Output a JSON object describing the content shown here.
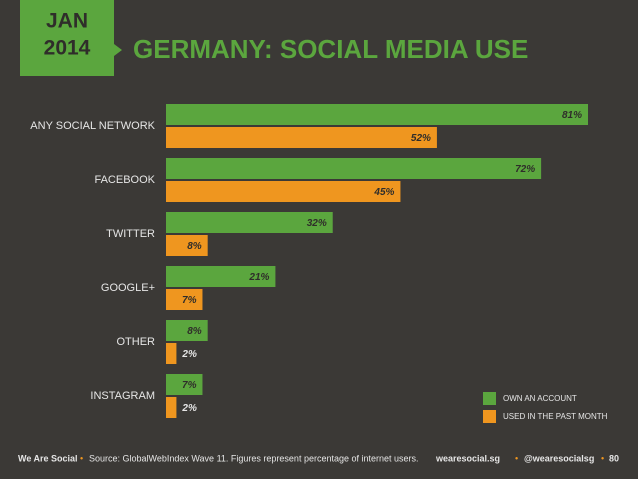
{
  "chart_data": {
    "type": "bar",
    "orientation": "horizontal",
    "badge": {
      "month": "JAN",
      "year": "2014"
    },
    "title": "GERMANY: SOCIAL MEDIA USE",
    "categories": [
      "ANY SOCIAL NETWORK",
      "FACEBOOK",
      "TWITTER",
      "GOOGLE+",
      "OTHER",
      "INSTAGRAM"
    ],
    "series": [
      {
        "name": "OWN AN ACCOUNT",
        "color": "#5ba63e",
        "values": [
          81,
          72,
          32,
          21,
          8,
          7
        ],
        "value_labels": [
          "81%",
          "72%",
          "32%",
          "21%",
          "8%",
          "7%"
        ]
      },
      {
        "name": "USED IN THE PAST MONTH",
        "color": "#ef961f",
        "values": [
          52,
          45,
          8,
          7,
          2,
          2
        ],
        "value_labels": [
          "52%",
          "45%",
          "8%",
          "7%",
          "2%",
          "2%"
        ]
      }
    ],
    "legend": "bottom-right",
    "footer": {
      "brand": "We Are Social",
      "source": "Source: GlobalWebIndex Wave 11. Figures represent percentage of internet users.",
      "site": "wearesocial.sg",
      "handle": "@wearesocialsg",
      "page": "80"
    }
  }
}
